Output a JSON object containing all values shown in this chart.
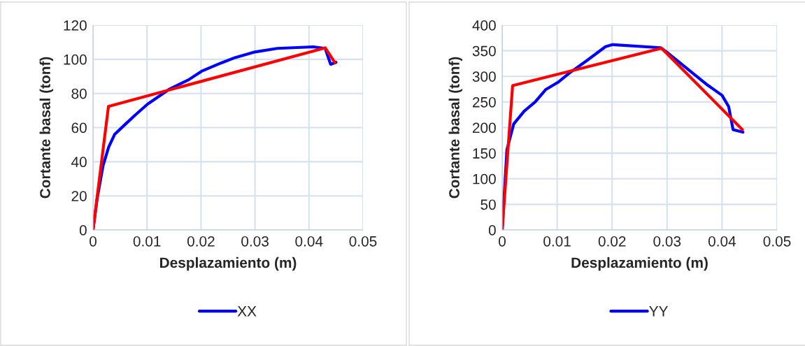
{
  "chart_data": [
    {
      "type": "line",
      "xlabel": "Desplazamiento (m)",
      "ylabel": "Cortante basal (tonf)",
      "xlim": [
        0,
        0.05
      ],
      "xticks": [
        0,
        0.01,
        0.02,
        0.03,
        0.04,
        0.05
      ],
      "ylim": [
        0,
        120
      ],
      "yticks": [
        0,
        20,
        40,
        60,
        80,
        100,
        120
      ],
      "grid": true,
      "legend": "bottom",
      "marker": "none",
      "line_style": "solid",
      "series": [
        {
          "name": "XX",
          "color": "#0000ff",
          "x": [
            0,
            0.00078,
            0.00186,
            0.0029,
            0.004,
            0.006,
            0.0079,
            0.0101,
            0.0142,
            0.0177,
            0.0201,
            0.0237,
            0.0263,
            0.03,
            0.0341,
            0.0408,
            0.043,
            0.044,
            0.045
          ],
          "values": [
            0,
            18.6,
            37.7,
            48.6,
            56,
            62,
            67.6,
            73.7,
            82.6,
            88,
            93,
            97.8,
            101,
            104.3,
            106.4,
            107.3,
            106.4,
            97.1,
            98.2
          ]
        },
        {
          "color": "#ff0000",
          "x": [
            0,
            0.00286,
            0.043,
            0.0448
          ],
          "values": [
            0,
            72.4,
            106.7,
            98
          ]
        }
      ]
    },
    {
      "type": "line",
      "xlabel": "Desplazamiento (m)",
      "ylabel": "Cortante basal (tonf)",
      "xlim": [
        0,
        0.05
      ],
      "xticks": [
        0,
        0.01,
        0.02,
        0.03,
        0.04,
        0.05
      ],
      "ylim": [
        0,
        400
      ],
      "yticks": [
        0,
        50,
        100,
        150,
        200,
        250,
        300,
        350,
        400
      ],
      "grid": true,
      "legend": "bottom",
      "marker": "none",
      "line_style": "solid",
      "series": [
        {
          "name": "YY",
          "color": "#0000ff",
          "x": [
            0,
            0.00087,
            0.0021,
            0.004,
            0.006,
            0.0079,
            0.0101,
            0.0123,
            0.0153,
            0.0188,
            0.0201,
            0.0288,
            0.0301,
            0.0371,
            0.04,
            0.0412,
            0.042,
            0.0438
          ],
          "values": [
            0,
            157,
            207,
            232,
            250,
            274,
            288,
            307,
            330,
            358,
            362,
            356,
            346,
            285,
            263,
            241,
            196,
            191
          ]
        },
        {
          "color": "#ff0000",
          "x": [
            0,
            0.0019,
            0.029,
            0.0437
          ],
          "values": [
            0,
            282,
            355,
            196
          ]
        }
      ]
    }
  ]
}
